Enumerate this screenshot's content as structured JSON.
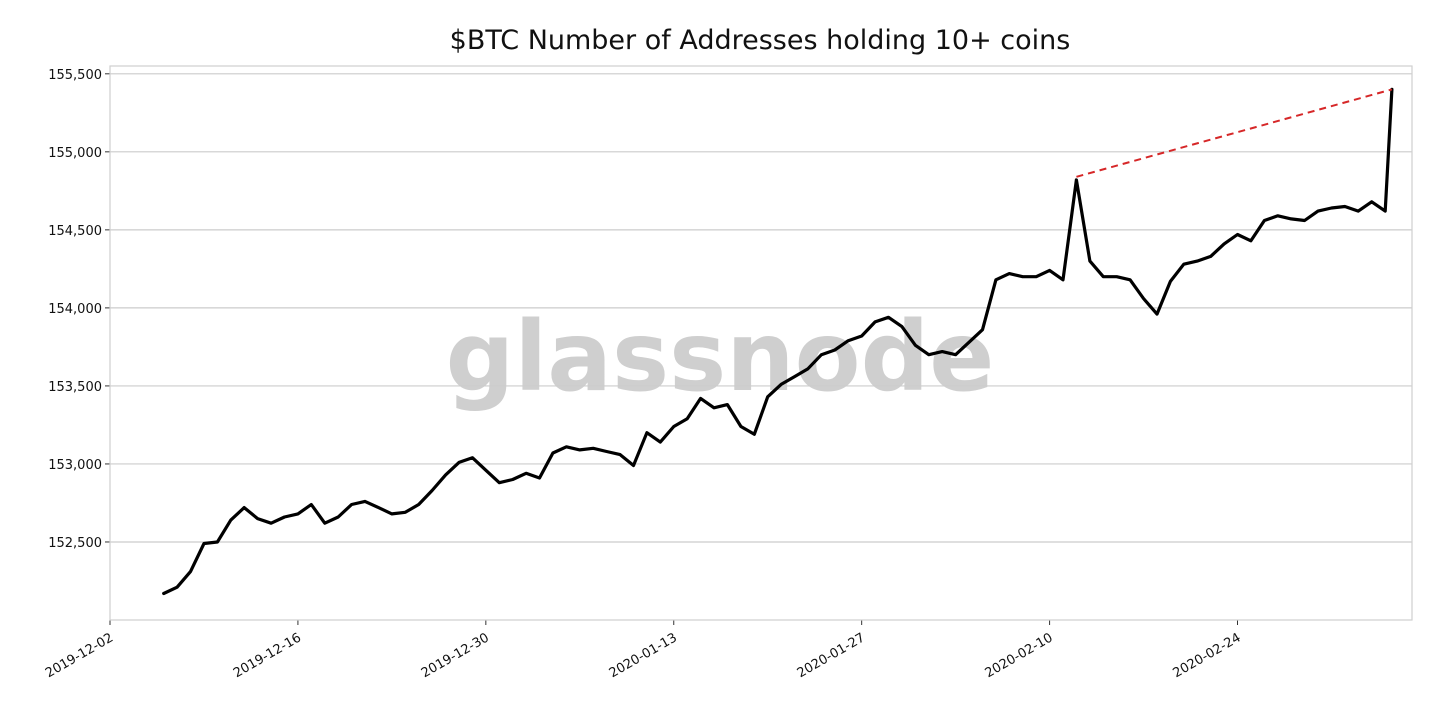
{
  "chart_data": {
    "type": "line",
    "title": "$BTC Number of Addresses holding 10+ coins",
    "xlabel": "",
    "ylabel": "",
    "watermark": "glassnode",
    "x_ticks": [
      "2019-12-02",
      "2019-12-16",
      "2019-12-30",
      "2020-01-13",
      "2020-01-27",
      "2020-02-10",
      "2020-02-24"
    ],
    "y_ticks": [
      152500,
      153000,
      153500,
      154000,
      154500,
      155000,
      155500
    ],
    "y_tick_labels": [
      "152,500",
      "153,000",
      "153,500",
      "154,000",
      "154,500",
      "155,000",
      "155,500"
    ],
    "xlim": [
      "2019-12-02",
      "2020-03-08"
    ],
    "ylim": [
      152000,
      155550
    ],
    "grid": "horizontal",
    "series": [
      {
        "color": "#000000",
        "points": [
          [
            "2019-12-06",
            152170
          ],
          [
            "2019-12-07",
            152210
          ],
          [
            "2019-12-08",
            152310
          ],
          [
            "2019-12-09",
            152490
          ],
          [
            "2019-12-10",
            152500
          ],
          [
            "2019-12-11",
            152640
          ],
          [
            "2019-12-12",
            152720
          ],
          [
            "2019-12-13",
            152650
          ],
          [
            "2019-12-14",
            152620
          ],
          [
            "2019-12-15",
            152660
          ],
          [
            "2019-12-16",
            152680
          ],
          [
            "2019-12-17",
            152740
          ],
          [
            "2019-12-18",
            152620
          ],
          [
            "2019-12-19",
            152660
          ],
          [
            "2019-12-20",
            152740
          ],
          [
            "2019-12-21",
            152760
          ],
          [
            "2019-12-22",
            152720
          ],
          [
            "2019-12-23",
            152680
          ],
          [
            "2019-12-24",
            152690
          ],
          [
            "2019-12-25",
            152740
          ],
          [
            "2019-12-26",
            152830
          ],
          [
            "2019-12-27",
            152930
          ],
          [
            "2019-12-28",
            153010
          ],
          [
            "2019-12-29",
            153040
          ],
          [
            "2019-12-30",
            152960
          ],
          [
            "2019-12-31",
            152880
          ],
          [
            "2020-01-01",
            152900
          ],
          [
            "2020-01-02",
            152940
          ],
          [
            "2020-01-03",
            152910
          ],
          [
            "2020-01-04",
            153070
          ],
          [
            "2020-01-05",
            153110
          ],
          [
            "2020-01-06",
            153090
          ],
          [
            "2020-01-07",
            153100
          ],
          [
            "2020-01-08",
            153080
          ],
          [
            "2020-01-09",
            153060
          ],
          [
            "2020-01-10",
            152990
          ],
          [
            "2020-01-11",
            153200
          ],
          [
            "2020-01-12",
            153140
          ],
          [
            "2020-01-13",
            153240
          ],
          [
            "2020-01-14",
            153290
          ],
          [
            "2020-01-15",
            153420
          ],
          [
            "2020-01-16",
            153360
          ],
          [
            "2020-01-17",
            153380
          ],
          [
            "2020-01-18",
            153240
          ],
          [
            "2020-01-19",
            153190
          ],
          [
            "2020-01-20",
            153430
          ],
          [
            "2020-01-21",
            153510
          ],
          [
            "2020-01-22",
            153560
          ],
          [
            "2020-01-23",
            153610
          ],
          [
            "2020-01-24",
            153700
          ],
          [
            "2020-01-25",
            153730
          ],
          [
            "2020-01-26",
            153790
          ],
          [
            "2020-01-27",
            153820
          ],
          [
            "2020-01-28",
            153910
          ],
          [
            "2020-01-29",
            153940
          ],
          [
            "2020-01-30",
            153880
          ],
          [
            "2020-01-31",
            153760
          ],
          [
            "2020-02-01",
            153700
          ],
          [
            "2020-02-02",
            153720
          ],
          [
            "2020-02-03",
            153700
          ],
          [
            "2020-02-04",
            153780
          ],
          [
            "2020-02-05",
            153860
          ],
          [
            "2020-02-06",
            154180
          ],
          [
            "2020-02-07",
            154220
          ],
          [
            "2020-02-08",
            154200
          ],
          [
            "2020-02-09",
            154200
          ],
          [
            "2020-02-10",
            154240
          ],
          [
            "2020-02-11",
            154180
          ],
          [
            "2020-02-12",
            154820
          ],
          [
            "2020-02-13",
            154300
          ],
          [
            "2020-02-14",
            154200
          ],
          [
            "2020-02-15",
            154200
          ],
          [
            "2020-02-16",
            154180
          ],
          [
            "2020-02-17",
            154060
          ],
          [
            "2020-02-18",
            153960
          ],
          [
            "2020-02-19",
            154170
          ],
          [
            "2020-02-20",
            154280
          ],
          [
            "2020-02-21",
            154300
          ],
          [
            "2020-02-22",
            154330
          ],
          [
            "2020-02-23",
            154410
          ],
          [
            "2020-02-24",
            154470
          ],
          [
            "2020-02-25",
            154430
          ],
          [
            "2020-02-26",
            154560
          ],
          [
            "2020-02-27",
            154590
          ],
          [
            "2020-02-28",
            154570
          ],
          [
            "2020-02-29",
            154560
          ],
          [
            "2020-03-01",
            154620
          ],
          [
            "2020-03-02",
            154640
          ],
          [
            "2020-03-03",
            154650
          ],
          [
            "2020-03-04",
            154620
          ],
          [
            "2020-03-05",
            154680
          ],
          [
            "2020-03-06",
            154620
          ],
          [
            "2020-03-06T12",
            155400
          ]
        ]
      }
    ],
    "trend_line": {
      "color": "#d62728",
      "style": "dashed",
      "from": [
        "2020-02-12",
        154840
      ],
      "to": [
        "2020-03-06T12",
        155400
      ]
    }
  }
}
